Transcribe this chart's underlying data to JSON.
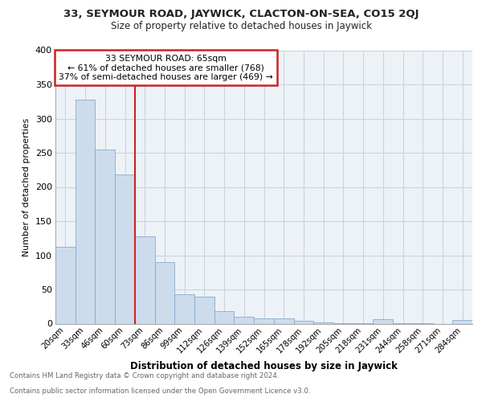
{
  "title1": "33, SEYMOUR ROAD, JAYWICK, CLACTON-ON-SEA, CO15 2QJ",
  "title2": "Size of property relative to detached houses in Jaywick",
  "xlabel": "Distribution of detached houses by size in Jaywick",
  "ylabel": "Number of detached properties",
  "categories": [
    "20sqm",
    "33sqm",
    "46sqm",
    "60sqm",
    "73sqm",
    "86sqm",
    "99sqm",
    "112sqm",
    "126sqm",
    "139sqm",
    "152sqm",
    "165sqm",
    "178sqm",
    "192sqm",
    "205sqm",
    "218sqm",
    "231sqm",
    "244sqm",
    "258sqm",
    "271sqm",
    "284sqm"
  ],
  "values": [
    112,
    328,
    255,
    218,
    128,
    90,
    43,
    40,
    18,
    10,
    8,
    8,
    4,
    2,
    1,
    1,
    6,
    1,
    1,
    0,
    5
  ],
  "bar_color": "#ccdcec",
  "bar_edge_color": "#88aacc",
  "property_line_x": 3.5,
  "annotation_text1": "33 SEYMOUR ROAD: 65sqm",
  "annotation_text2": "← 61% of detached houses are smaller (768)",
  "annotation_text3": "37% of semi-detached houses are larger (469) →",
  "annotation_box_color": "#ffffff",
  "annotation_border_color": "#cc2222",
  "vertical_line_color": "#cc2222",
  "footnote1": "Contains HM Land Registry data © Crown copyright and database right 2024.",
  "footnote2": "Contains public sector information licensed under the Open Government Licence v3.0.",
  "ylim": [
    0,
    400
  ],
  "yticks": [
    0,
    50,
    100,
    150,
    200,
    250,
    300,
    350,
    400
  ],
  "grid_color": "#c8d4e0",
  "bg_color": "#ffffff",
  "plot_bg_color": "#edf2f7"
}
